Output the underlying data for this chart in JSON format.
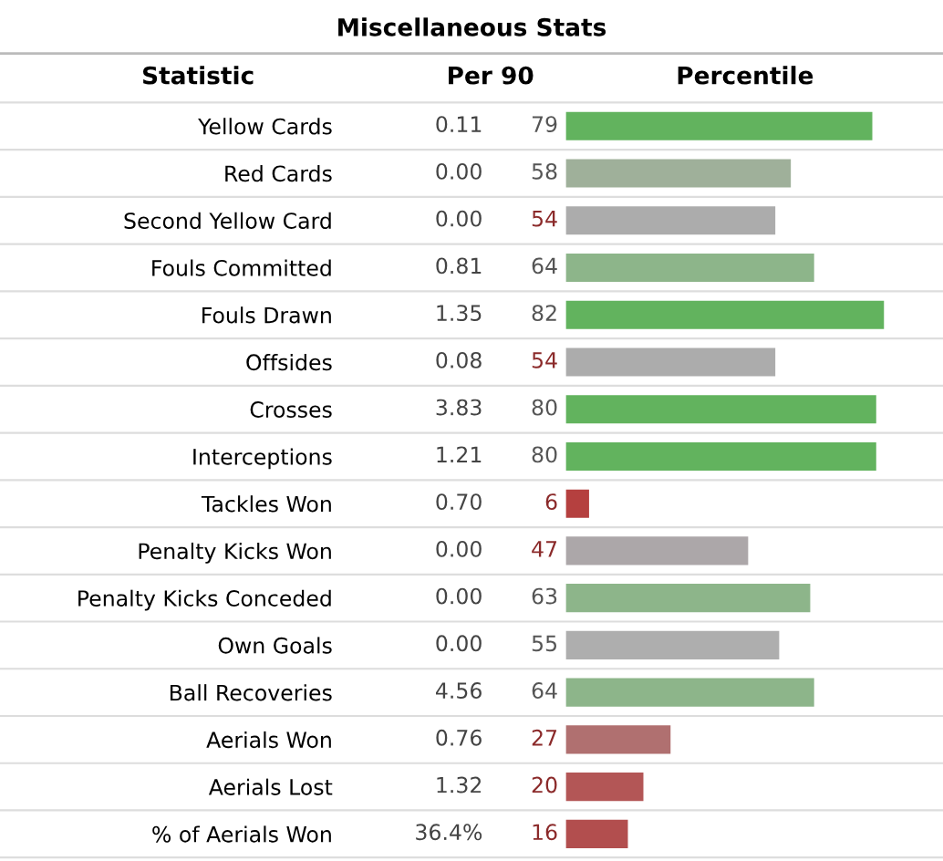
{
  "chart_data": {
    "type": "bar",
    "orientation": "horizontal",
    "title": "Miscellaneous Stats",
    "ylabel": "Statistic",
    "xlabel": "Percentile",
    "categories": [
      "Yellow Cards",
      "Red Cards",
      "Second Yellow Card",
      "Fouls Committed",
      "Fouls Drawn",
      "Offsides",
      "Crosses",
      "Interceptions",
      "Tackles Won",
      "Penalty Kicks Won",
      "Penalty Kicks Conceded",
      "Own Goals",
      "Ball Recoveries",
      "Aerials Won",
      "Aerials Lost",
      "% of Aerials Won"
    ],
    "values": [
      79,
      58,
      54,
      64,
      82,
      54,
      80,
      80,
      6,
      47,
      63,
      55,
      64,
      27,
      20,
      16
    ],
    "colors": [
      "#62b35e",
      "#9fb09a",
      "#acacac",
      "#8db58a",
      "#62b35e",
      "#acacac",
      "#62b35e",
      "#62b35e",
      "#b5403f",
      "#aca7a9",
      "#8db58a",
      "#aeaeae",
      "#8db58a",
      "#b07070",
      "#b35656",
      "#b24e4e"
    ],
    "data_labels": true,
    "annotations": [
      "Per 90",
      "0.11",
      "0.00",
      "0.00",
      "0.81",
      "1.35",
      "0.08",
      "3.83",
      "1.21",
      "0.70",
      "0.00",
      "0.00",
      "0.00",
      "4.56",
      "0.76",
      "1.32",
      "36.4%"
    ],
    "xlim": [
      0,
      96
    ],
    "tick_labels": "y",
    "grid": false
  }
}
